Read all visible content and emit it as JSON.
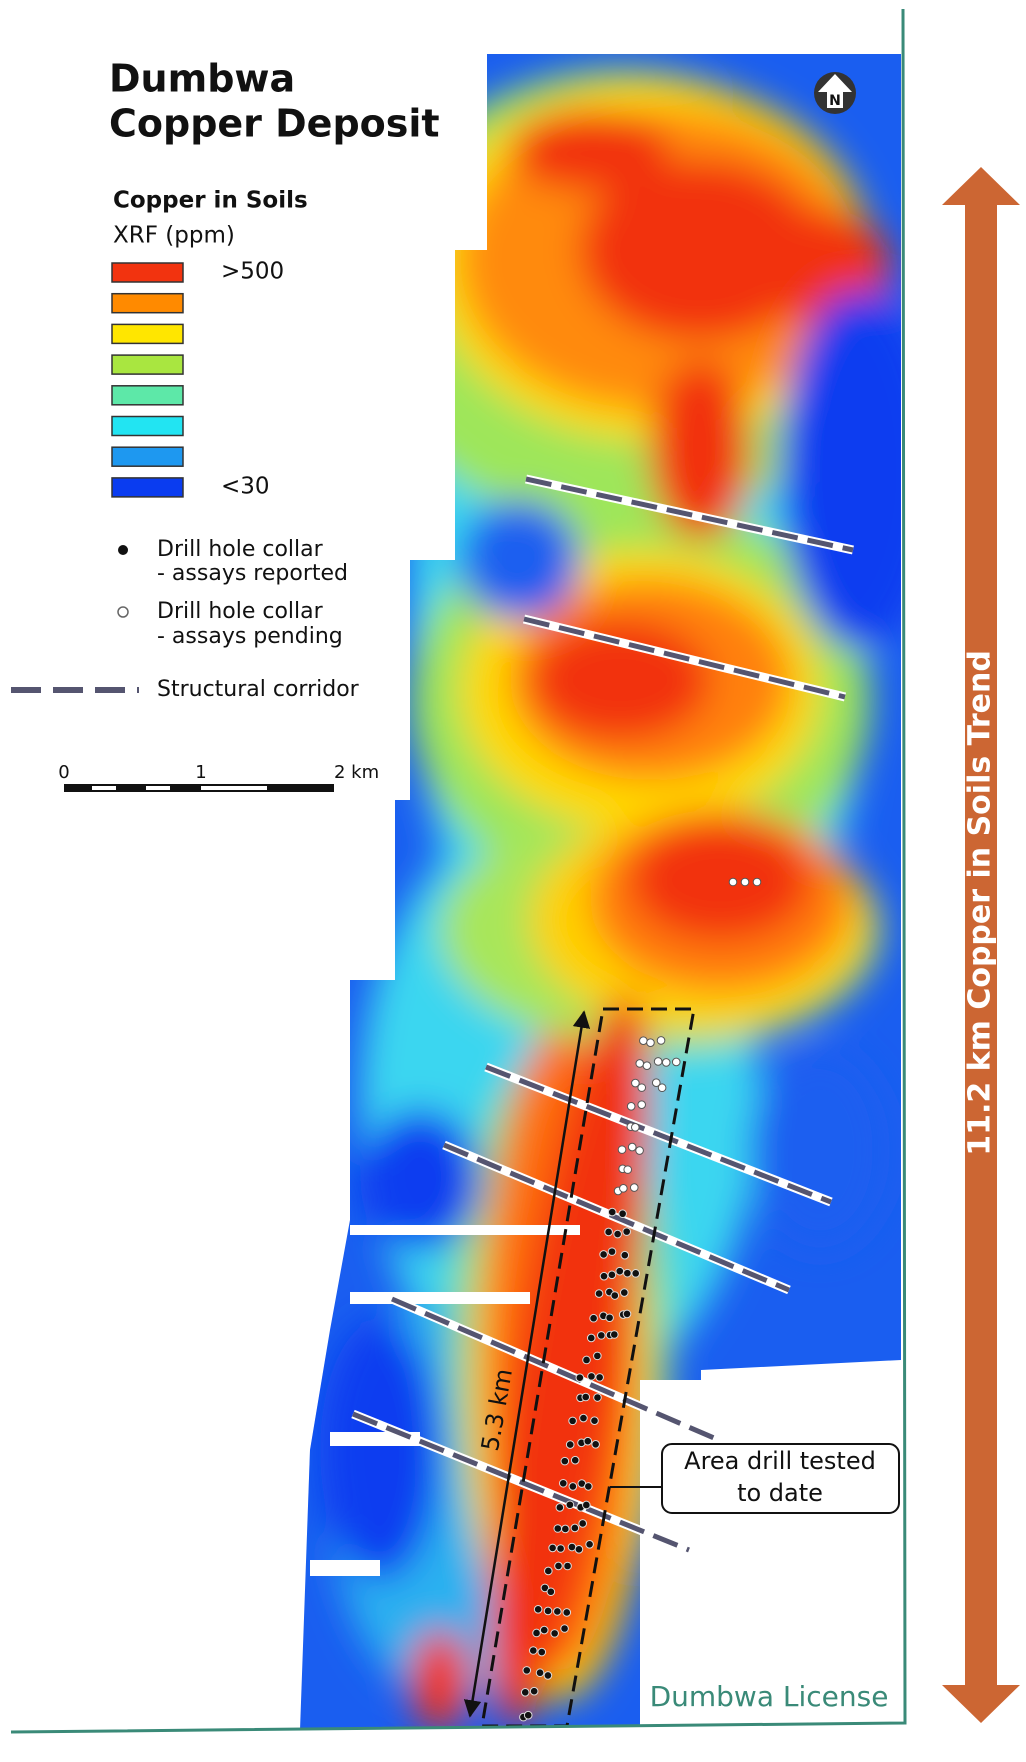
{
  "header": {
    "title": [
      "Dumbwa",
      "Copper Deposit"
    ],
    "north": "N"
  },
  "legend": {
    "title": "Copper in Soils",
    "subtitle": "XRF (ppm)",
    "colors": [
      "#f2330f",
      "#ff8a00",
      "#ffe600",
      "#a9e640",
      "#5de8a8",
      "#22e4f2",
      "#1e98f0",
      "#0a3cf0"
    ],
    "high_label": ">500",
    "low_label": "<30",
    "items": [
      {
        "label": "Drill hole collar",
        "sublabel": "- assays reported"
      },
      {
        "label": "Drill hole collar",
        "sublabel": "- assays pending"
      },
      {
        "label": "Structural corridor"
      }
    ]
  },
  "scale_bar": {
    "labels": [
      "0",
      "1",
      "2 km"
    ]
  },
  "map": {
    "drill_length": "5.3 km",
    "callout": [
      "Area drill tested",
      "to date"
    ],
    "trend": "11.2 km Copper in Soils Trend",
    "license": "Dumbwa License"
  }
}
